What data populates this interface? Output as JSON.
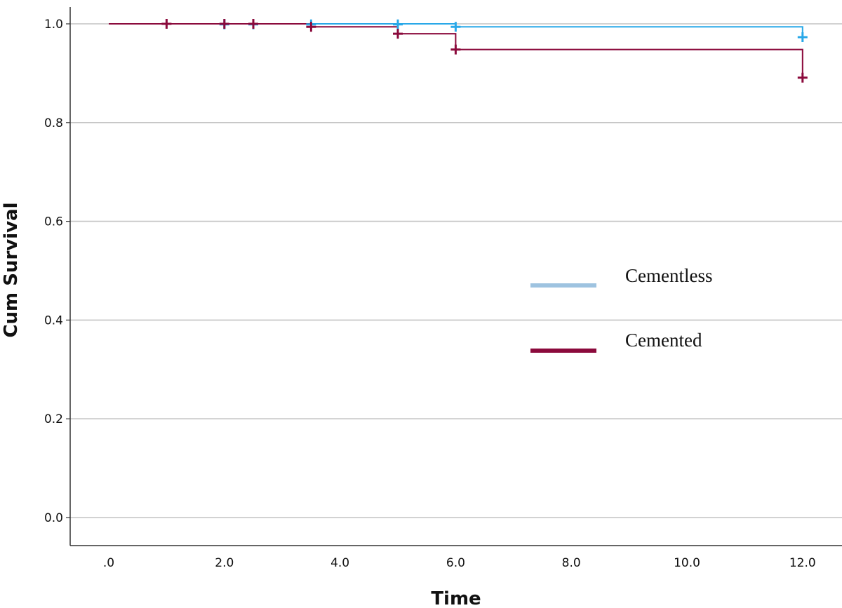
{
  "chart_data": {
    "type": "line",
    "step": true,
    "xlabel": "Time",
    "ylabel": "Cum Survival",
    "xlim": [
      0,
      12.6
    ],
    "ylim": [
      -0.05,
      1.02
    ],
    "x_ticks": [
      {
        "value": 0,
        "label": ".0"
      },
      {
        "value": 2,
        "label": "2.0"
      },
      {
        "value": 4,
        "label": "4.0"
      },
      {
        "value": 6,
        "label": "6.0"
      },
      {
        "value": 8,
        "label": "8.0"
      },
      {
        "value": 10,
        "label": "10.0"
      },
      {
        "value": 12,
        "label": "12.0"
      }
    ],
    "y_ticks": [
      {
        "value": 0.0,
        "label": "0.0"
      },
      {
        "value": 0.2,
        "label": "0.2"
      },
      {
        "value": 0.4,
        "label": "0.4"
      },
      {
        "value": 0.6,
        "label": "0.6"
      },
      {
        "value": 0.8,
        "label": "0.8"
      },
      {
        "value": 1.0,
        "label": "1.0"
      }
    ],
    "grid": "horizontal",
    "legend_position": "right",
    "series": [
      {
        "name": "Cementless",
        "color": "#29a8e8",
        "legend_color": "#9ec3e0",
        "steps": [
          [
            0,
            1.0
          ],
          [
            3.5,
            1.0
          ],
          [
            6.0,
            0.994
          ],
          [
            12.0,
            0.973
          ]
        ],
        "censored": [
          [
            2.0,
            0.999
          ],
          [
            2.5,
            0.999
          ],
          [
            3.5,
            0.999
          ],
          [
            5.0,
            0.999
          ],
          [
            6.0,
            0.994
          ],
          [
            12.0,
            0.973
          ]
        ]
      },
      {
        "name": "Cemented",
        "color": "#8b0a3c",
        "legend_color": "#8b0a3c",
        "steps": [
          [
            0,
            1.0
          ],
          [
            3.5,
            0.994
          ],
          [
            5.0,
            0.98
          ],
          [
            6.0,
            0.948
          ],
          [
            12.0,
            0.891
          ]
        ],
        "censored": [
          [
            1.0,
            1.0
          ],
          [
            2.0,
            1.0
          ],
          [
            2.5,
            1.0
          ],
          [
            3.5,
            0.994
          ],
          [
            5.0,
            0.98
          ],
          [
            6.0,
            0.948
          ],
          [
            12.0,
            0.891
          ]
        ]
      }
    ]
  }
}
